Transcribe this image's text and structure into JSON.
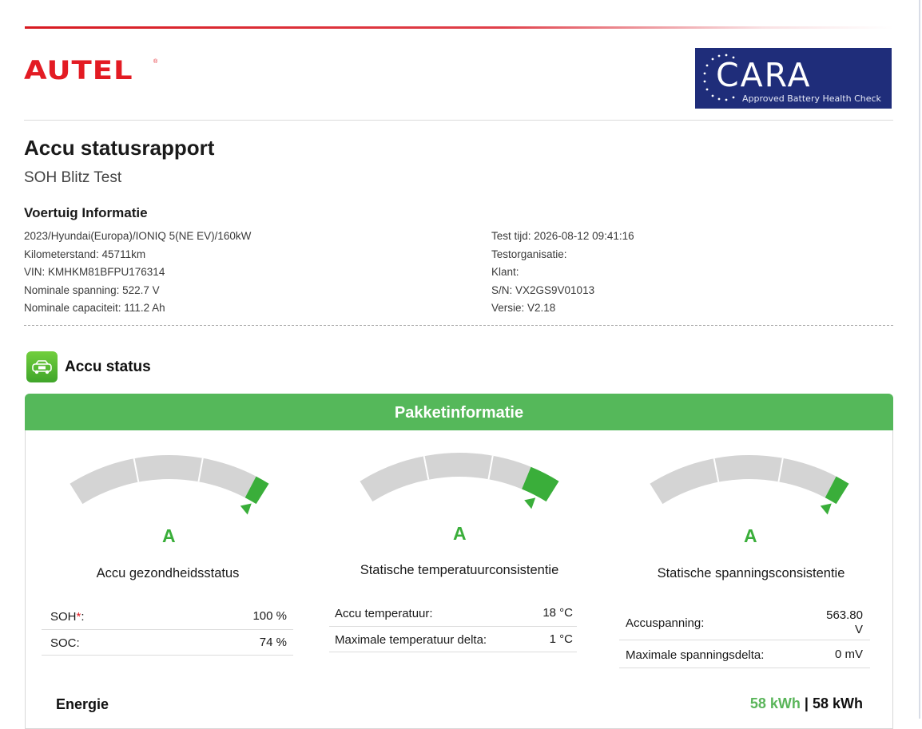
{
  "brand": {
    "name": "AUTEL",
    "reg_mark": "®"
  },
  "cara": {
    "name": "CARA",
    "tagline": "Approved Battery Health Check",
    "colors": {
      "badge": "#1f2d7a",
      "text": "#ffffff"
    }
  },
  "report": {
    "title": "Accu statusrapport",
    "subtitle": "SOH Blitz Test"
  },
  "vehicle": {
    "heading": "Voertuig Informatie",
    "left": [
      "2023/Hyundai(Europa)/IONIQ 5(NE EV)/160kW",
      "Kilometerstand: 45711km",
      "VIN: KMHKM81BFPU176314",
      "Nominale spanning: 522.7 V",
      "Nominale capaciteit: 111.2 Ah"
    ],
    "right": [
      "Test tijd: 2026-08-12 09:41:16",
      "Testorganisatie:",
      "Klant:",
      "S/N: VX2GS9V01013",
      "Versie: V2.18"
    ]
  },
  "status": {
    "heading": "Accu status",
    "icon": "battery-car-icon",
    "panel_title": "Pakketinformatie"
  },
  "gauges": [
    {
      "grade": "A",
      "title": "Accu gezondheidsstatus",
      "level": 0.93,
      "rows": [
        {
          "label": "SOH",
          "required_mark": "*",
          "suffix": ":",
          "value": "100 %"
        },
        {
          "label": "SOC:",
          "value": "74 %"
        }
      ]
    },
    {
      "grade": "A",
      "title": "Statische temperatuurconsistentie",
      "level": 0.85,
      "rows": [
        {
          "label": "Accu temperatuur:",
          "value": "18 °C"
        },
        {
          "label": "Maximale temperatuur delta:",
          "value": "1 °C"
        }
      ]
    },
    {
      "grade": "A",
      "title": "Statische spanningsconsistentie",
      "level": 0.93,
      "rows": [
        {
          "label": "Accuspanning:",
          "value_line1": "563.80",
          "value_line2": "V"
        },
        {
          "label": "Maximale spanningsdelta:",
          "value": "0 mV"
        }
      ]
    }
  ],
  "energy": {
    "label": "Energie",
    "current": "58 kWh",
    "separator": "|",
    "total": "58 kWh"
  },
  "colors": {
    "accent_red": "#e31b23",
    "pass_green": "#3aae3a",
    "header_green": "#55b85a",
    "gauge_grey": "#d4d4d4"
  }
}
